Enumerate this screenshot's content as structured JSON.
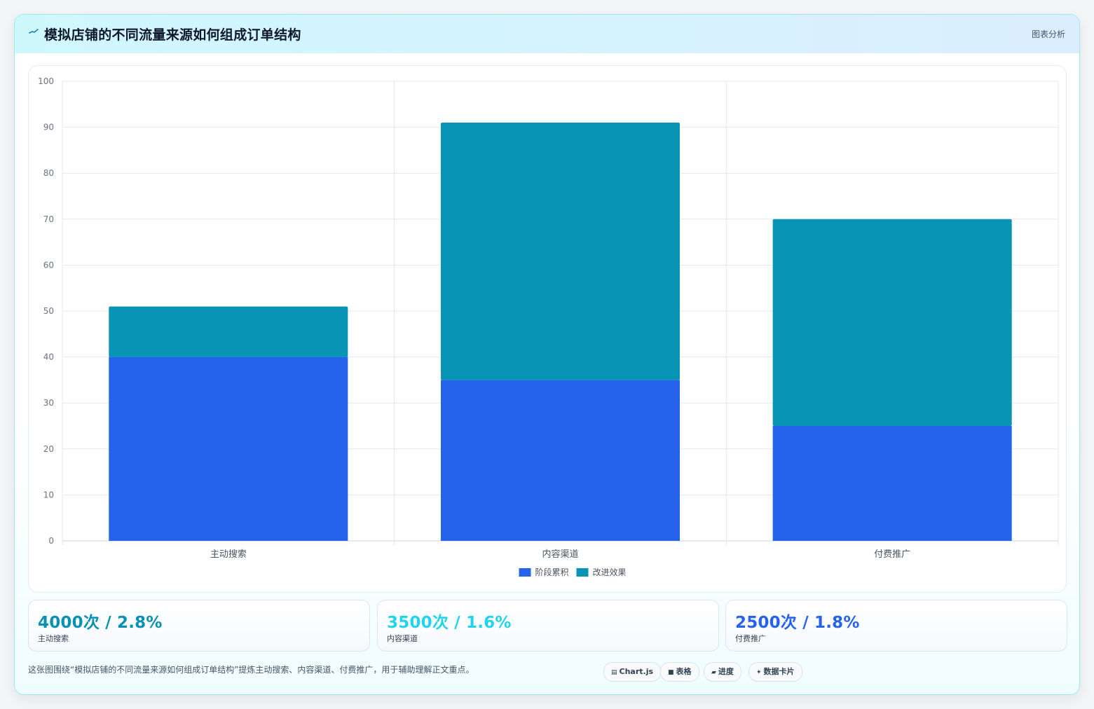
{
  "header": {
    "title": "模拟店铺的不同流量来源如何组成订单结构",
    "tag": "图表分析",
    "icon": "pulse-line-icon"
  },
  "chart_data": {
    "type": "bar",
    "stacked": true,
    "categories": [
      "主动搜索",
      "内容渠道",
      "付费推广"
    ],
    "series": [
      {
        "name": "阶段累积",
        "values": [
          40,
          35,
          25
        ],
        "color": "#2563eb"
      },
      {
        "name": "改进效果",
        "values": [
          11,
          56,
          45
        ],
        "color": "#0894b5"
      }
    ],
    "ylim": [
      0,
      100
    ],
    "yticks": [
      0,
      10,
      20,
      30,
      40,
      50,
      60,
      70,
      80,
      90,
      100
    ],
    "grid": true,
    "legend_position": "bottom"
  },
  "stats": [
    {
      "value": "4000次 / 2.8%",
      "label": "主动搜索",
      "color": "#0891b2"
    },
    {
      "value": "3500次 / 1.6%",
      "label": "内容渠道",
      "color": "#22d3ee"
    },
    {
      "value": "2500次 / 1.8%",
      "label": "付费推广",
      "color": "#2563eb"
    }
  ],
  "caption": "这张图围绕“模拟店铺的不同流量来源如何组成订单结构”提炼主动搜索、内容渠道、付费推广，用于辅助理解正文重点。",
  "chips": [
    {
      "label": "Chart.js",
      "icon": "chart-icon",
      "glyph": "▤"
    },
    {
      "label": "表格",
      "icon": "table-icon",
      "glyph": "■"
    },
    {
      "label": "进度",
      "icon": "progress-icon",
      "glyph": "▰"
    },
    {
      "label": "数据卡片",
      "icon": "sparkle-icon",
      "glyph": "✦"
    }
  ]
}
